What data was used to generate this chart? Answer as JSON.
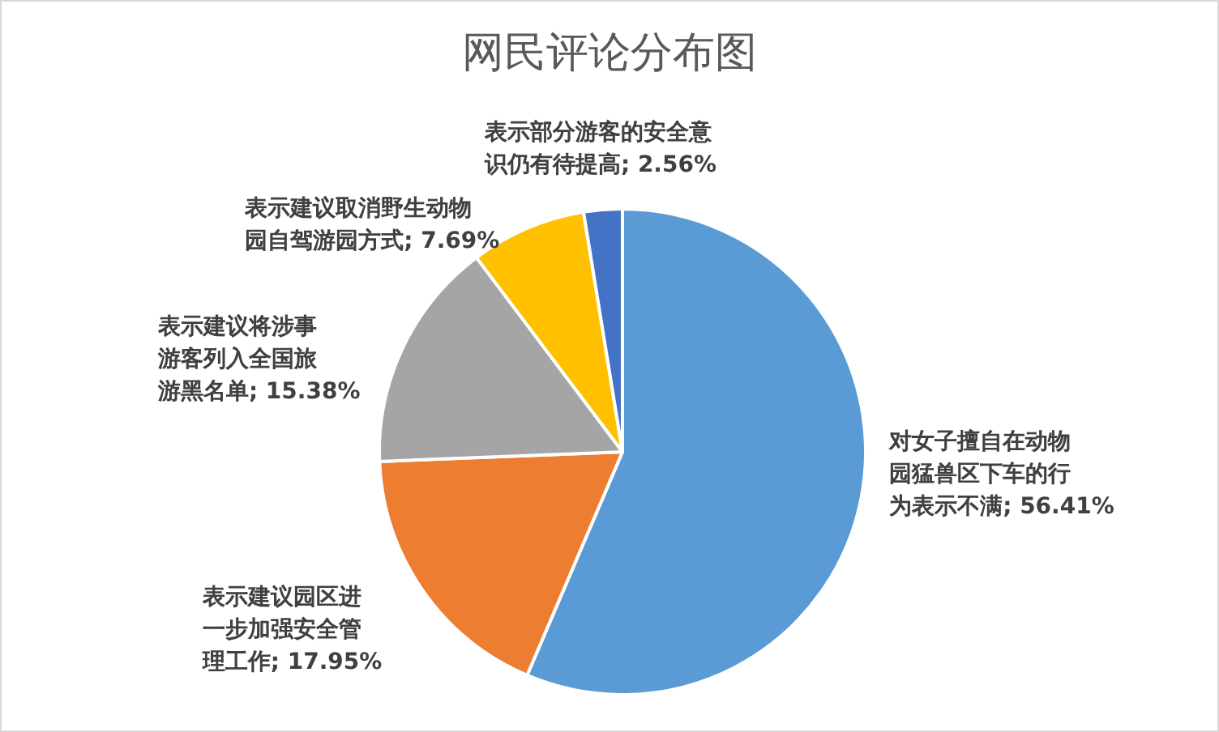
{
  "chart_data": {
    "type": "pie",
    "title": "网民评论分布图",
    "categories": [
      "对女子擅自在动物园猛兽区下车的行为表示不满",
      "表示建议园区进一步加强安全管理工作",
      "表示建议将涉事游客列入全国旅游黑名单",
      "表示建议取消野生动物园自驾游园方式",
      "表示部分游客的安全意识仍有待提高"
    ],
    "values": [
      56.41,
      17.95,
      15.38,
      7.69,
      2.56
    ],
    "colors": [
      "#5b9bd5",
      "#ed7d31",
      "#a5a5a5",
      "#ffc000",
      "#4472c4"
    ],
    "value_labels": [
      "; 56.41%",
      "; 17.95%",
      "; 15.38%",
      "; 7.69%",
      "; 2.56%"
    ]
  }
}
